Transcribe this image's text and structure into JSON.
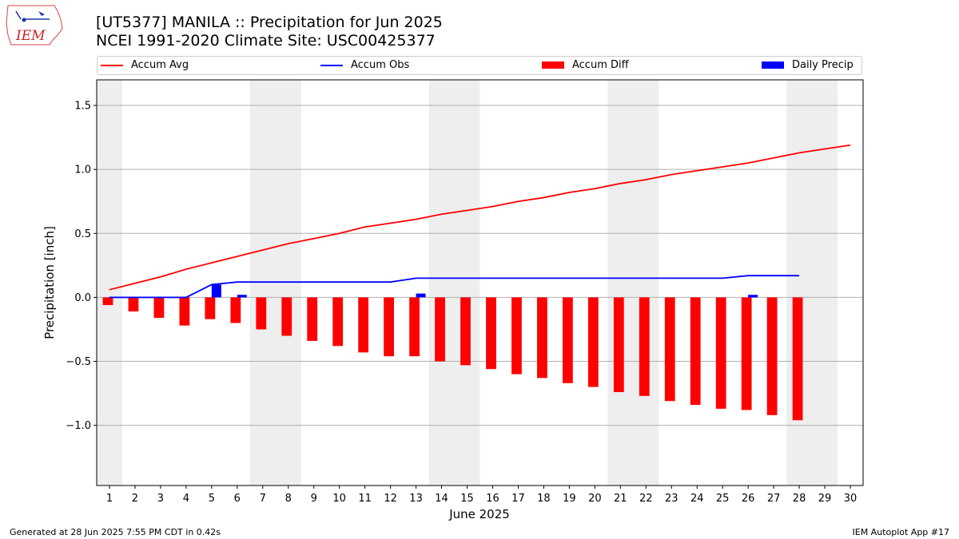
{
  "header": {
    "title_line1": "[UT5377] MANILA :: Precipitation for Jun 2025",
    "title_line2": "NCEI 1991-2020 Climate Site: USC00425377"
  },
  "logo": {
    "text": "IEM"
  },
  "footer": {
    "generated": "Generated at 28 Jun 2025 7:55 PM CDT in 0.42s",
    "app": "IEM Autoplot App #17"
  },
  "chart_data": {
    "type": "bar",
    "title": "[UT5377] MANILA :: Precipitation for Jun 2025",
    "subtitle": "NCEI 1991-2020 Climate Site: USC00425377",
    "xlabel": "June 2025",
    "ylabel": "Precipitation [inch]",
    "xlim": [
      0.5,
      30.5
    ],
    "ylim": [
      -1.47,
      1.7
    ],
    "yticks": [
      -1.0,
      -0.5,
      0.0,
      0.5,
      1.0,
      1.5
    ],
    "ytick_labels": [
      "−1.0",
      "−0.5",
      "0.0",
      "0.5",
      "1.0",
      "1.5"
    ],
    "xticks": [
      1,
      2,
      3,
      4,
      5,
      6,
      7,
      8,
      9,
      10,
      11,
      12,
      13,
      14,
      15,
      16,
      17,
      18,
      19,
      20,
      21,
      22,
      23,
      24,
      25,
      26,
      27,
      28,
      29,
      30
    ],
    "grid": "horizontal",
    "legend_placement": "top",
    "weekend_shading": [
      [
        0.5,
        1.5
      ],
      [
        6.5,
        8.5
      ],
      [
        13.5,
        15.5
      ],
      [
        20.5,
        22.5
      ],
      [
        27.5,
        29.5
      ]
    ],
    "shading_color": "#eeeeee",
    "series": [
      {
        "name": "Accum Avg",
        "kind": "line",
        "color": "#ff0000",
        "x": [
          1,
          2,
          3,
          4,
          5,
          6,
          7,
          8,
          9,
          10,
          11,
          12,
          13,
          14,
          15,
          16,
          17,
          18,
          19,
          20,
          21,
          22,
          23,
          24,
          25,
          26,
          27,
          28,
          29,
          30
        ],
        "values": [
          0.06,
          0.11,
          0.16,
          0.22,
          0.27,
          0.32,
          0.37,
          0.42,
          0.46,
          0.5,
          0.55,
          0.58,
          0.61,
          0.65,
          0.68,
          0.71,
          0.75,
          0.78,
          0.82,
          0.85,
          0.89,
          0.92,
          0.96,
          0.99,
          1.02,
          1.05,
          1.09,
          1.13,
          1.16,
          1.19
        ]
      },
      {
        "name": "Accum Obs",
        "kind": "line",
        "color": "#0000ff",
        "x": [
          1,
          2,
          3,
          4,
          5,
          6,
          7,
          8,
          9,
          10,
          11,
          12,
          13,
          14,
          15,
          16,
          17,
          18,
          19,
          20,
          21,
          22,
          23,
          24,
          25,
          26,
          27,
          28
        ],
        "values": [
          0.0,
          0.0,
          0.0,
          0.0,
          0.1,
          0.12,
          0.12,
          0.12,
          0.12,
          0.12,
          0.12,
          0.12,
          0.15,
          0.15,
          0.15,
          0.15,
          0.15,
          0.15,
          0.15,
          0.15,
          0.15,
          0.15,
          0.15,
          0.15,
          0.15,
          0.17,
          0.17,
          0.17
        ]
      },
      {
        "name": "Accum Diff",
        "kind": "bar",
        "color": "#ff0000",
        "x": [
          1,
          2,
          3,
          4,
          5,
          6,
          7,
          8,
          9,
          10,
          11,
          12,
          13,
          14,
          15,
          16,
          17,
          18,
          19,
          20,
          21,
          22,
          23,
          24,
          25,
          26,
          27,
          28
        ],
        "values": [
          -0.06,
          -0.11,
          -0.16,
          -0.22,
          -0.17,
          -0.2,
          -0.25,
          -0.3,
          -0.34,
          -0.38,
          -0.43,
          -0.46,
          -0.46,
          -0.5,
          -0.53,
          -0.56,
          -0.6,
          -0.63,
          -0.67,
          -0.7,
          -0.74,
          -0.77,
          -0.81,
          -0.84,
          -0.87,
          -0.88,
          -0.92,
          -0.96
        ]
      },
      {
        "name": "Daily Precip",
        "kind": "bar",
        "color": "#0000ff",
        "x": [
          1,
          2,
          3,
          4,
          5,
          6,
          7,
          8,
          9,
          10,
          11,
          12,
          13,
          14,
          15,
          16,
          17,
          18,
          19,
          20,
          21,
          22,
          23,
          24,
          25,
          26,
          27,
          28
        ],
        "values": [
          0.0,
          0.0,
          0.0,
          0.0,
          0.1,
          0.02,
          0.0,
          0.0,
          0.0,
          0.0,
          0.0,
          0.0,
          0.03,
          0.0,
          0.0,
          0.0,
          0.0,
          0.0,
          0.0,
          0.0,
          0.0,
          0.0,
          0.0,
          0.0,
          0.0,
          0.02,
          0.0,
          0.0
        ]
      }
    ]
  }
}
